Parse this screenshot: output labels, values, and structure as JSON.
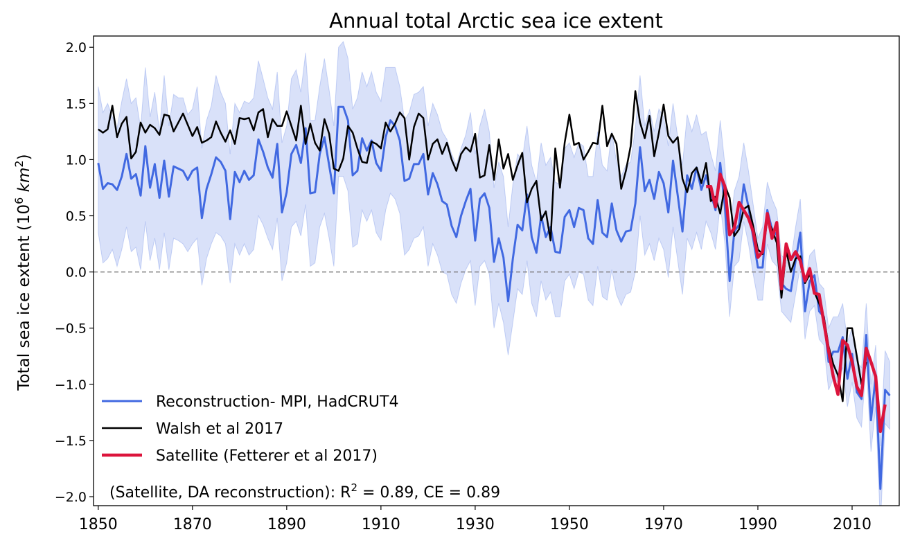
{
  "chart_data": {
    "type": "line",
    "title": "Annual total Arctic sea ice extent",
    "ylabel": [
      "Total sea ice extent (10",
      "6",
      " km",
      "2",
      ")"
    ],
    "annotation": [
      "(Satellite, DA reconstruction): R",
      "2",
      " = 0.89, CE = 0.89"
    ],
    "xlim": [
      1849,
      2020
    ],
    "ylim": [
      -2.08,
      2.1
    ],
    "xticks": [
      1850,
      1870,
      1890,
      1910,
      1930,
      1950,
      1970,
      1990,
      2010
    ],
    "yticks": [
      {
        "value": -2.0,
        "label": "−2.0"
      },
      {
        "value": -1.5,
        "label": "−1.5"
      },
      {
        "value": -1.0,
        "label": "−1.0"
      },
      {
        "value": -0.5,
        "label": "−0.5"
      },
      {
        "value": 0,
        "label": "0.0"
      },
      {
        "value": 0.5,
        "label": "0.5"
      },
      {
        "value": 1.0,
        "label": "1.0"
      },
      {
        "value": 1.5,
        "label": "1.5"
      },
      {
        "value": 2.0,
        "label": "2.0"
      }
    ],
    "reference_line": {
      "value": 0,
      "color": "#808080",
      "style": "dashed"
    },
    "legend": "lower left",
    "x": [
      1850,
      1851,
      1852,
      1853,
      1854,
      1855,
      1856,
      1857,
      1858,
      1859,
      1860,
      1861,
      1862,
      1863,
      1864,
      1865,
      1866,
      1867,
      1868,
      1869,
      1870,
      1871,
      1872,
      1873,
      1874,
      1875,
      1876,
      1877,
      1878,
      1879,
      1880,
      1881,
      1882,
      1883,
      1884,
      1885,
      1886,
      1887,
      1888,
      1889,
      1890,
      1891,
      1892,
      1893,
      1894,
      1895,
      1896,
      1897,
      1898,
      1899,
      1900,
      1901,
      1902,
      1903,
      1904,
      1905,
      1906,
      1907,
      1908,
      1909,
      1910,
      1911,
      1912,
      1913,
      1914,
      1915,
      1916,
      1917,
      1918,
      1919,
      1920,
      1921,
      1922,
      1923,
      1924,
      1925,
      1926,
      1927,
      1928,
      1929,
      1930,
      1931,
      1932,
      1933,
      1934,
      1935,
      1936,
      1937,
      1938,
      1939,
      1940,
      1941,
      1942,
      1943,
      1944,
      1945,
      1946,
      1947,
      1948,
      1949,
      1950,
      1951,
      1952,
      1953,
      1954,
      1955,
      1956,
      1957,
      1958,
      1959,
      1960,
      1961,
      1962,
      1963,
      1964,
      1965,
      1966,
      1967,
      1968,
      1969,
      1970,
      1971,
      1972,
      1973,
      1974,
      1975,
      1976,
      1977,
      1978,
      1979,
      1980,
      1981,
      1982,
      1983,
      1984,
      1985,
      1986,
      1987,
      1988,
      1989,
      1990,
      1991,
      1992,
      1993,
      1994,
      1995,
      1996,
      1997,
      1998,
      1999,
      2000,
      2001,
      2002,
      2003,
      2004,
      2005,
      2006,
      2007,
      2008,
      2009,
      2010,
      2011,
      2012,
      2013,
      2014,
      2015,
      2016,
      2017,
      2018
    ],
    "band": {
      "color": "#4169e1",
      "upper": [
        1.65,
        1.42,
        1.5,
        1.38,
        1.28,
        1.52,
        1.72,
        1.5,
        1.55,
        1.28,
        1.82,
        1.38,
        1.6,
        1.25,
        1.75,
        1.3,
        1.58,
        1.55,
        1.55,
        1.4,
        1.45,
        1.65,
        1.1,
        1.35,
        1.48,
        1.75,
        1.6,
        1.5,
        1.05,
        1.5,
        1.42,
        1.52,
        1.5,
        1.55,
        1.88,
        1.72,
        1.55,
        1.45,
        1.78,
        1.15,
        1.3,
        1.72,
        1.8,
        1.6,
        1.95,
        1.35,
        1.35,
        1.65,
        1.9,
        1.62,
        1.3,
        2.0,
        2.05,
        1.9,
        1.45,
        1.55,
        1.78,
        1.65,
        1.78,
        1.6,
        1.52,
        1.82,
        1.82,
        1.82,
        1.65,
        1.35,
        1.42,
        1.58,
        1.6,
        1.65,
        1.3,
        1.5,
        1.4,
        1.25,
        1.18,
        1.05,
        0.95,
        1.1,
        1.22,
        1.42,
        1.05,
        1.3,
        1.45,
        1.25,
        0.75,
        0.98,
        0.85,
        0.4,
        0.78,
        1.05,
        1.0,
        1.3,
        0.95,
        0.8,
        1.15,
        0.95,
        1.02,
        0.8,
        0.78,
        1.1,
        1.15,
        1.02,
        1.15,
        1.12,
        0.85,
        0.85,
        1.25,
        0.95,
        0.9,
        1.25,
        0.98,
        0.85,
        0.95,
        0.98,
        1.28,
        1.75,
        1.3,
        1.45,
        1.25,
        1.45,
        1.38,
        1.12,
        1.5,
        1.2,
        0.95,
        1.4,
        1.25,
        1.4,
        1.22,
        1.25,
        1.05,
        0.9,
        1.35,
        0.95,
        0.35,
        0.72,
        0.85,
        1.15,
        0.9,
        0.6,
        0.3,
        0.4,
        0.8,
        0.65,
        0.55,
        0.15,
        0.1,
        0.1,
        0.4,
        0.65,
        -0.1,
        0.15,
        0.2,
        -0.1,
        -0.15,
        -0.5,
        -0.4,
        -0.4,
        -0.28,
        -0.62,
        -0.5,
        -0.8,
        -0.85,
        -0.28,
        -1.0,
        -0.65,
        -1.55,
        -0.7,
        -0.8
      ],
      "lower": [
        0.35,
        0.08,
        0.12,
        0.2,
        0.05,
        0.2,
        0.4,
        0.18,
        0.22,
        0.02,
        0.45,
        0.1,
        0.3,
        0.02,
        0.35,
        0.02,
        0.3,
        0.28,
        0.25,
        0.18,
        0.25,
        0.3,
        -0.12,
        0.12,
        0.25,
        0.35,
        0.32,
        0.25,
        -0.1,
        0.25,
        0.15,
        0.25,
        0.15,
        0.2,
        0.5,
        0.42,
        0.3,
        0.2,
        0.48,
        -0.08,
        0.08,
        0.4,
        0.45,
        0.32,
        0.6,
        0.05,
        0.08,
        0.4,
        0.52,
        0.3,
        0.05,
        0.85,
        0.85,
        0.72,
        0.22,
        0.25,
        0.55,
        0.45,
        0.55,
        0.35,
        0.28,
        0.55,
        0.7,
        0.65,
        0.52,
        0.15,
        0.2,
        0.3,
        0.32,
        0.4,
        0.05,
        0.25,
        0.15,
        0.0,
        -0.02,
        -0.2,
        -0.28,
        -0.1,
        0.02,
        0.1,
        -0.3,
        0.05,
        0.1,
        -0.02,
        -0.5,
        -0.28,
        -0.45,
        -0.74,
        -0.45,
        -0.15,
        -0.2,
        0.1,
        -0.28,
        -0.4,
        -0.08,
        -0.25,
        -0.18,
        -0.4,
        -0.4,
        -0.08,
        -0.02,
        -0.15,
        0.0,
        -0.02,
        -0.25,
        -0.3,
        0.05,
        -0.22,
        -0.25,
        0.02,
        -0.2,
        -0.3,
        -0.2,
        -0.18,
        0.0,
        0.5,
        0.15,
        0.25,
        0.1,
        0.3,
        0.2,
        -0.05,
        0.4,
        0.1,
        -0.2,
        0.3,
        0.2,
        0.35,
        0.2,
        0.45,
        0.35,
        0.2,
        0.6,
        0.25,
        -0.4,
        0.05,
        0.1,
        0.45,
        0.25,
        -0.02,
        -0.25,
        -0.25,
        0.25,
        0.1,
        0.05,
        -0.35,
        -0.4,
        -0.45,
        -0.2,
        0.05,
        -0.6,
        -0.35,
        -0.3,
        -0.6,
        -0.65,
        -1.05,
        -0.95,
        -0.98,
        -0.85,
        -1.2,
        -0.98,
        -1.3,
        -1.38,
        -0.8,
        -1.6,
        -1.2,
        -2.25,
        -1.35,
        -1.4
      ]
    },
    "series": [
      {
        "name": "Reconstruction- MPI, HadCRUT4",
        "color": "#4169e1",
        "width": 3,
        "values": [
          0.97,
          0.74,
          0.79,
          0.78,
          0.73,
          0.85,
          1.05,
          0.83,
          0.87,
          0.68,
          1.12,
          0.75,
          0.96,
          0.66,
          0.99,
          0.67,
          0.94,
          0.92,
          0.9,
          0.82,
          0.9,
          0.93,
          0.48,
          0.74,
          0.87,
          1.02,
          0.98,
          0.9,
          0.47,
          0.89,
          0.8,
          0.9,
          0.82,
          0.86,
          1.18,
          1.07,
          0.93,
          0.84,
          1.14,
          0.53,
          0.71,
          1.05,
          1.13,
          0.97,
          1.28,
          0.7,
          0.71,
          1.05,
          1.2,
          0.95,
          0.7,
          1.47,
          1.47,
          1.35,
          0.86,
          0.9,
          1.19,
          1.08,
          1.17,
          0.97,
          0.9,
          1.2,
          1.35,
          1.3,
          1.17,
          0.81,
          0.83,
          0.96,
          0.96,
          1.05,
          0.69,
          0.88,
          0.78,
          0.63,
          0.6,
          0.41,
          0.31,
          0.5,
          0.63,
          0.74,
          0.28,
          0.65,
          0.7,
          0.57,
          0.09,
          0.3,
          0.13,
          -0.26,
          0.12,
          0.42,
          0.37,
          0.69,
          0.31,
          0.17,
          0.5,
          0.31,
          0.4,
          0.18,
          0.17,
          0.49,
          0.55,
          0.4,
          0.57,
          0.55,
          0.3,
          0.25,
          0.64,
          0.35,
          0.31,
          0.61,
          0.37,
          0.27,
          0.36,
          0.37,
          0.61,
          1.11,
          0.72,
          0.82,
          0.65,
          0.89,
          0.79,
          0.53,
          0.99,
          0.68,
          0.36,
          0.86,
          0.74,
          0.93,
          0.73,
          0.86,
          0.7,
          0.55,
          0.97,
          0.58,
          -0.08,
          0.36,
          0.42,
          0.78,
          0.58,
          0.3,
          0.04,
          0.04,
          0.55,
          0.38,
          0.33,
          -0.1,
          -0.15,
          -0.17,
          0.1,
          0.35,
          -0.35,
          -0.08,
          -0.03,
          -0.35,
          -0.4,
          -0.8,
          -0.71,
          -0.71,
          -0.58,
          -0.95,
          -0.73,
          -1.07,
          -1.13,
          -0.56,
          -1.32,
          -0.93,
          -1.93,
          -1.05,
          -1.1
        ]
      },
      {
        "name": "Walsh et al 2017",
        "color": "#000000",
        "width": 2.5,
        "values": [
          1.27,
          1.24,
          1.27,
          1.48,
          1.2,
          1.32,
          1.38,
          1.01,
          1.07,
          1.33,
          1.24,
          1.31,
          1.28,
          1.22,
          1.4,
          1.39,
          1.25,
          1.33,
          1.41,
          1.31,
          1.21,
          1.29,
          1.15,
          1.17,
          1.2,
          1.34,
          1.24,
          1.16,
          1.26,
          1.14,
          1.37,
          1.36,
          1.37,
          1.26,
          1.42,
          1.45,
          1.2,
          1.36,
          1.3,
          1.3,
          1.43,
          1.3,
          1.17,
          1.48,
          1.14,
          1.32,
          1.15,
          1.08,
          1.36,
          1.23,
          0.92,
          0.9,
          1.01,
          1.3,
          1.24,
          1.1,
          0.98,
          0.97,
          1.16,
          1.14,
          1.1,
          1.33,
          1.25,
          1.32,
          1.42,
          1.37,
          1.0,
          1.29,
          1.41,
          1.37,
          1.0,
          1.14,
          1.18,
          1.05,
          1.15,
          1.0,
          0.9,
          1.05,
          1.11,
          1.07,
          1.23,
          0.84,
          0.86,
          1.13,
          0.82,
          1.18,
          0.92,
          1.05,
          0.82,
          0.95,
          1.06,
          0.62,
          0.74,
          0.81,
          0.46,
          0.54,
          0.28,
          1.1,
          0.75,
          1.15,
          1.4,
          1.13,
          1.15,
          1.0,
          1.07,
          1.15,
          1.14,
          1.48,
          1.12,
          1.23,
          1.14,
          0.74,
          0.9,
          1.12,
          1.61,
          1.33,
          1.19,
          1.39,
          1.03,
          1.24,
          1.49,
          1.21,
          1.15,
          1.2,
          0.83,
          0.71,
          0.88,
          0.93,
          0.79,
          0.97,
          0.63,
          0.67,
          0.52,
          0.77,
          0.66,
          0.32,
          0.38,
          0.56,
          0.59,
          0.41,
          0.2,
          0.16,
          0.47,
          0.38,
          0.26,
          -0.23,
          0.19,
          0.0,
          0.12,
          0.14,
          -0.1,
          -0.02,
          -0.18,
          -0.28,
          -0.4,
          -0.66,
          -0.82,
          -0.92,
          -1.15,
          -0.5,
          -0.5,
          -0.75,
          -1.0,
          -0.8,
          null,
          null,
          null,
          null,
          null
        ]
      },
      {
        "name": "Satellite (Fetterer et al 2017)",
        "color": "#dc143c",
        "width": 4.5,
        "values": [
          null,
          null,
          null,
          null,
          null,
          null,
          null,
          null,
          null,
          null,
          null,
          null,
          null,
          null,
          null,
          null,
          null,
          null,
          null,
          null,
          null,
          null,
          null,
          null,
          null,
          null,
          null,
          null,
          null,
          null,
          null,
          null,
          null,
          null,
          null,
          null,
          null,
          null,
          null,
          null,
          null,
          null,
          null,
          null,
          null,
          null,
          null,
          null,
          null,
          null,
          null,
          null,
          null,
          null,
          null,
          null,
          null,
          null,
          null,
          null,
          null,
          null,
          null,
          null,
          null,
          null,
          null,
          null,
          null,
          null,
          null,
          null,
          null,
          null,
          null,
          null,
          null,
          null,
          null,
          null,
          null,
          null,
          null,
          null,
          null,
          null,
          null,
          null,
          null,
          null,
          null,
          null,
          null,
          null,
          null,
          null,
          null,
          null,
          null,
          null,
          null,
          null,
          null,
          null,
          null,
          null,
          null,
          null,
          null,
          null,
          null,
          null,
          null,
          null,
          null,
          null,
          null,
          null,
          null,
          null,
          null,
          null,
          null,
          null,
          null,
          null,
          null,
          null,
          null,
          0.76,
          0.76,
          0.58,
          0.87,
          0.76,
          0.33,
          0.39,
          0.62,
          0.55,
          0.48,
          0.36,
          0.13,
          0.18,
          0.52,
          0.3,
          0.44,
          -0.15,
          0.25,
          0.11,
          0.18,
          0.1,
          -0.08,
          0.03,
          -0.19,
          -0.2,
          -0.45,
          -0.7,
          -0.93,
          -1.09,
          -0.61,
          -0.65,
          -0.8,
          -1.02,
          -1.1,
          -0.68,
          -0.8,
          -0.93,
          -1.42,
          -1.18,
          null
        ]
      }
    ]
  }
}
